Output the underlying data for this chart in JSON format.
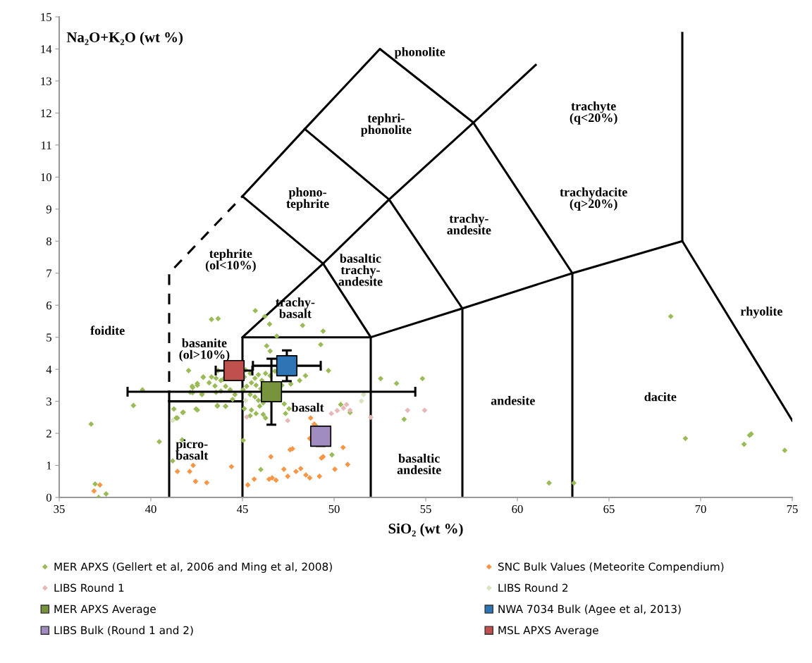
{
  "chart_data": {
    "type": "scatter",
    "xlabel": "SiO₂ (wt %)",
    "ylabel": "Na₂O+K₂O (wt %)",
    "xlim": [
      35,
      75
    ],
    "ylim": [
      0,
      15
    ],
    "xticks": [
      35,
      40,
      45,
      50,
      55,
      60,
      65,
      70,
      75
    ],
    "yticks": [
      0,
      1,
      2,
      3,
      4,
      5,
      6,
      7,
      8,
      9,
      10,
      11,
      12,
      13,
      14,
      15
    ],
    "grid": false,
    "legend": "bottom",
    "series": [
      {
        "type": "line",
        "color": "#000000",
        "line_style": "solid",
        "x": [
          41,
          41
        ],
        "values": [
          0,
          3
        ]
      },
      {
        "type": "line",
        "color": "#000000",
        "line_style": "solid",
        "x": [
          41,
          45
        ],
        "values": [
          3,
          3
        ]
      },
      {
        "type": "line",
        "color": "#000000",
        "line_style": "dashed",
        "x": [
          41,
          41,
          45
        ],
        "values": [
          3,
          7,
          9.4
        ]
      },
      {
        "type": "line",
        "color": "#000000",
        "line_style": "solid",
        "x": [
          45,
          45,
          52,
          52
        ],
        "values": [
          0,
          5,
          5,
          0
        ]
      },
      {
        "type": "line",
        "color": "#000000",
        "line_style": "solid",
        "x": [
          45,
          49.4,
          52
        ],
        "values": [
          5,
          7.3,
          5
        ]
      },
      {
        "type": "line",
        "color": "#000000",
        "line_style": "solid",
        "x": [
          52,
          57,
          63,
          69,
          75
        ],
        "values": [
          5,
          5.9,
          7,
          8,
          2.4
        ]
      },
      {
        "type": "line",
        "color": "#000000",
        "line_style": "solid",
        "x": [
          57,
          57
        ],
        "values": [
          0,
          5.9
        ]
      },
      {
        "type": "line",
        "color": "#000000",
        "line_style": "solid",
        "x": [
          63,
          63
        ],
        "values": [
          0,
          7
        ]
      },
      {
        "type": "line",
        "color": "#000000",
        "line_style": "solid",
        "x": [
          69,
          69
        ],
        "values": [
          8,
          14.5
        ]
      },
      {
        "type": "line",
        "color": "#000000",
        "line_style": "solid",
        "x": [
          45,
          49.4
        ],
        "values": [
          9.4,
          7.3
        ]
      },
      {
        "type": "line",
        "color": "#000000",
        "line_style": "solid",
        "x": [
          49.4,
          53,
          57.6,
          61
        ],
        "values": [
          7.3,
          9.3,
          11.7,
          13.5
        ]
      },
      {
        "type": "line",
        "color": "#000000",
        "line_style": "solid",
        "x": [
          45,
          48.4,
          52.5,
          57.6,
          63
        ],
        "values": [
          9.4,
          11.5,
          14,
          11.7,
          7
        ]
      },
      {
        "type": "line",
        "color": "#000000",
        "line_style": "solid",
        "x": [
          48.4,
          53,
          57
        ],
        "values": [
          11.5,
          9.3,
          5.9
        ]
      },
      {
        "name": "MER APXS (Gellert et al, 2006 and Ming et al, 2008)",
        "color": "#9bbb59",
        "marker": "diamond",
        "x": [
          36.74,
          36.96,
          37.15,
          37.56,
          39.05,
          39.54,
          40.46,
          41.19,
          41.26,
          41.45,
          41.74,
          41.71,
          42.47,
          42.06,
          42.26,
          42.54,
          42.86,
          42.28,
          42.79,
          43.31,
          43.67,
          43.67,
          43.5,
          43.95,
          43.63,
          44.08,
          43.82,
          45.7,
          46.22,
          46.48,
          48.28,
          49.4,
          46.87,
          49.27,
          46.32,
          46.51,
          49.69,
          48.44,
          48.12,
          47.64,
          52.54,
          45.17,
          45.42,
          45.1,
          45.68,
          45.87,
          46.06,
          46.26,
          46.51,
          46.77,
          45.49,
          45.74,
          46.0,
          45.23,
          45.04,
          45.42,
          45.68,
          45.87,
          46.13,
          45.94,
          45.49,
          45.74,
          45.42,
          46.13,
          46.26,
          47.28,
          47.35,
          47.54,
          47.15,
          45.1,
          44.46,
          44.59,
          44.33,
          44.08,
          43.82,
          43.56,
          43.31,
          43.18,
          42.86,
          42.54,
          42.28,
          42.15,
          42.79,
          43.56,
          44.08,
          43.63,
          41.77,
          42.54,
          41.38,
          45.04,
          46.0,
          49.88,
          48.97,
          50.36,
          53.41,
          54.82,
          50.87,
          53.82,
          68.37,
          69.17,
          72.37,
          72.67,
          72.76,
          74.59,
          61.73,
          63.08
        ],
        "values": [
          2.29,
          0.42,
          0.0,
          0.11,
          2.87,
          3.36,
          1.74,
          1.14,
          2.76,
          2.48,
          2.65,
          1.8,
          2.76,
          3.96,
          3.47,
          3.56,
          3.75,
          3.27,
          3.23,
          5.56,
          5.58,
          3.96,
          3.48,
          3.69,
          2.87,
          2.84,
          3.32,
          5.83,
          5.65,
          5.41,
          5.37,
          5.19,
          5.03,
          4.77,
          4.73,
          4.57,
          3.96,
          3.8,
          3.65,
          3.54,
          3.71,
          3.98,
          3.87,
          3.76,
          3.72,
          3.83,
          3.65,
          3.87,
          3.8,
          3.94,
          3.58,
          3.5,
          3.39,
          3.47,
          3.36,
          3.21,
          3.14,
          3.03,
          2.95,
          2.85,
          2.73,
          2.62,
          2.55,
          2.59,
          2.48,
          2.92,
          2.62,
          2.77,
          3.5,
          2.77,
          3.06,
          3.21,
          3.36,
          3.47,
          3.65,
          3.72,
          3.76,
          3.58,
          3.76,
          3.5,
          3.43,
          3.28,
          3.21,
          3.28,
          2.85,
          2.85,
          2.66,
          2.73,
          2.48,
          1.78,
          0.87,
          1.33,
          2.26,
          2.9,
          3.56,
          3.71,
          2.65,
          2.44,
          5.65,
          1.84,
          1.66,
          1.94,
          1.98,
          1.47,
          0.45,
          0.45
        ]
      },
      {
        "name": "SNC Bulk Values (Meteorite Compendium)",
        "color": "#f79646",
        "marker": "diamond",
        "x": [
          37.22,
          36.9,
          41.45,
          42.12,
          42.31,
          42.44,
          43.05,
          44.4,
          48.72,
          48.67,
          47.6,
          47.73,
          46.55,
          49.4,
          49.31,
          50.49,
          50.74,
          50.04,
          49.2,
          48.67,
          48.46,
          48.18,
          47.92,
          47.47,
          47.26,
          46.83,
          46.62,
          46.45,
          45.64,
          45.29,
          48.91
        ],
        "values": [
          0.39,
          0.2,
          0.81,
          0.81,
          1.0,
          0.5,
          0.46,
          0.96,
          2.48,
          1.84,
          1.49,
          1.52,
          1.27,
          1.27,
          1.23,
          1.56,
          1.03,
          0.88,
          0.66,
          0.61,
          0.7,
          0.9,
          0.81,
          0.66,
          0.88,
          0.54,
          0.61,
          0.57,
          0.57,
          0.39,
          2.29
        ]
      },
      {
        "name": "LIBS Round 1",
        "color": "#e6b9b8",
        "marker": "diamond",
        "x": [
          50.17,
          50.51,
          50.68,
          50.87,
          52.0,
          54.01,
          54.94,
          45.23,
          47.47,
          49.85
        ],
        "values": [
          2.71,
          2.79,
          2.9,
          2.72,
          2.5,
          2.72,
          2.72,
          2.51,
          2.4,
          2.62
        ]
      },
      {
        "name": "LIBS Round 2",
        "color": "#d7e4bd",
        "marker": "diamond",
        "x": [
          51.61,
          51.49,
          41.19,
          45.17
        ],
        "values": [
          3.21,
          3.01,
          2.4,
          3.03
        ]
      },
      {
        "name": "MER APXS Average",
        "color": "#77933c",
        "marker": "square",
        "x": [
          46.58
        ],
        "values": [
          3.3
        ],
        "xerrors": [
          7.85
        ],
        "errors": [
          1.03
        ]
      },
      {
        "name": "NWA 7034 Bulk (Agee et al, 2013)",
        "color": "#2e75b6",
        "marker": "square",
        "x": [
          47.42
        ],
        "values": [
          4.11
        ],
        "xerrors": [
          1.85
        ],
        "errors": [
          0.48
        ]
      },
      {
        "name": "LIBS Bulk (Round 1 and 2)",
        "color": "#a18cbf",
        "marker": "square",
        "x": [
          49.27
        ],
        "values": [
          1.91
        ],
        "errors": [
          0.3
        ]
      },
      {
        "name": "MSL APXS Average",
        "color": "#c0504d",
        "marker": "square",
        "x": [
          44.54
        ],
        "values": [
          3.96
        ],
        "xerrors": [
          1.0
        ]
      }
    ],
    "annotations": [
      "phonolite",
      "tephri-\nphonolite",
      "trachyte\n(q<20%)",
      "phono-\ntephrite",
      "trachydacite\n(q>20%)",
      "trachy-\nandesite",
      "basaltic\ntrachy-\nandesite",
      "tephrite\n(ol<10%)",
      "trachy-\nbasalt",
      "foidite",
      "basanite\n(ol>10%)",
      "rhyolite",
      "basalt",
      "andesite",
      "dacite",
      "picro-\nbasalt",
      "basaltic\nandesite"
    ]
  }
}
